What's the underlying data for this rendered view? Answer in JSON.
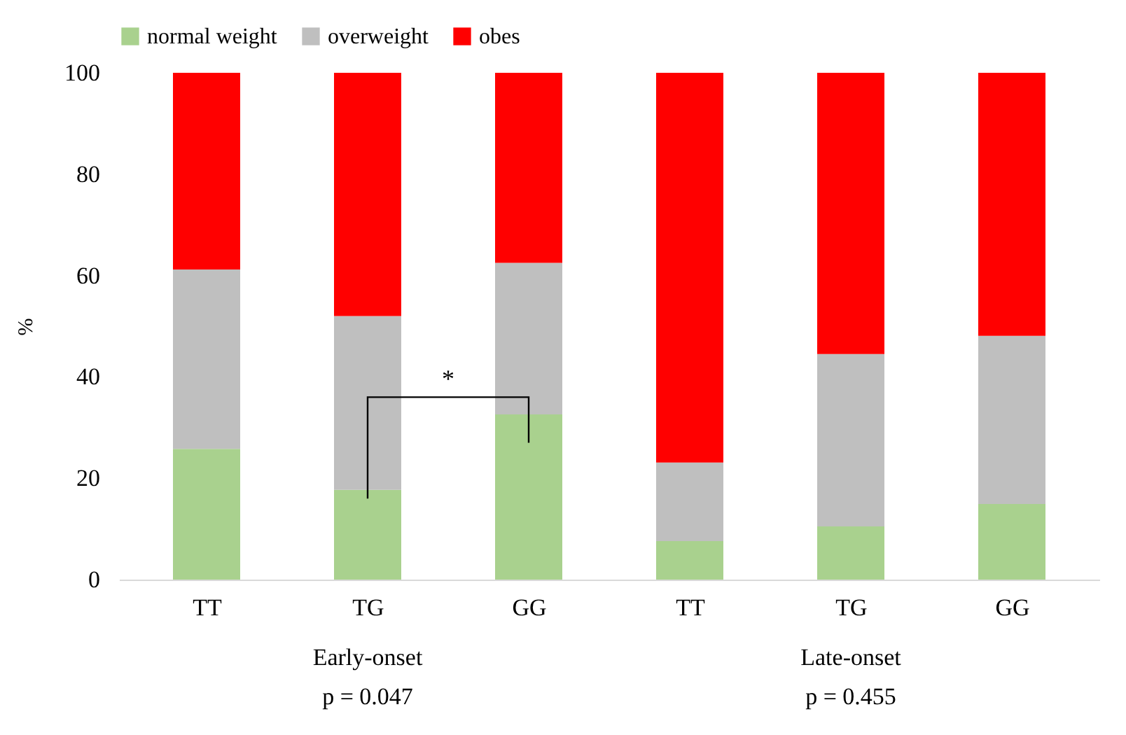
{
  "chart_data": {
    "type": "bar",
    "stacked": true,
    "ylabel": "%",
    "categories": [
      "TT",
      "TG",
      "GG",
      "TT",
      "TG",
      "GG"
    ],
    "series": [
      {
        "name": "normal weight",
        "color": "#a9d18e",
        "values": [
          25.8,
          17.7,
          32.6,
          7.6,
          10.5,
          14.9
        ]
      },
      {
        "name": "overweight",
        "color": "#bfbfbf",
        "values": [
          35.4,
          34.3,
          29.9,
          15.5,
          34.0,
          33.2
        ]
      },
      {
        "name": "obes",
        "color": "#ff0000",
        "values": [
          38.8,
          48.0,
          37.5,
          76.9,
          55.5,
          51.9
        ]
      }
    ],
    "ylim": [
      0,
      100
    ],
    "yticks": [
      0,
      20,
      40,
      60,
      80,
      100
    ],
    "grid": false,
    "legend": "top",
    "annotations": [
      "*",
      "Early-onset",
      "Late-onset",
      "p = 0.047",
      "p = 0.455"
    ]
  }
}
